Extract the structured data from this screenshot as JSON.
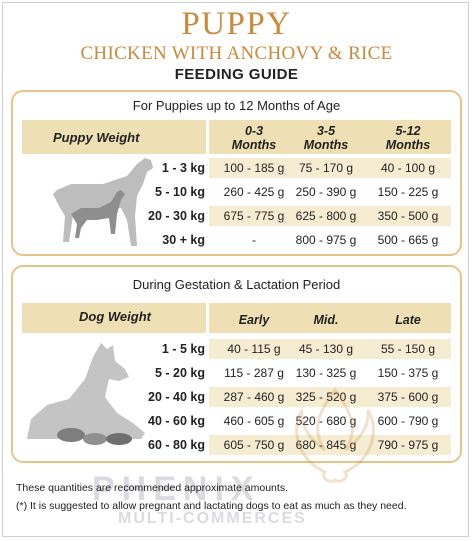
{
  "brand": {
    "title": "PUPPY",
    "subtitle": "CHICKEN WITH ANCHOVY & RICE",
    "heading": "FEEDING GUIDE"
  },
  "puppy_table": {
    "caption": "For Puppies up to 12 Months of Age",
    "row_header": "Puppy Weight",
    "columns": [
      {
        "line1": "0-3",
        "line2": "Months"
      },
      {
        "line1": "3-5",
        "line2": "Months"
      },
      {
        "line1": "5-12",
        "line2": "Months"
      }
    ],
    "rows": [
      {
        "weight": "1 - 3 kg",
        "values": [
          "100 - 185 g",
          "75 - 170 g",
          "40 - 100 g"
        ]
      },
      {
        "weight": "5 - 10 kg",
        "values": [
          "260  - 425 g",
          "250 - 390 g",
          "150 - 225 g"
        ]
      },
      {
        "weight": "20 - 30 kg",
        "values": [
          "675 - 775 g",
          "625 - 800 g",
          "350 - 500 g"
        ]
      },
      {
        "weight": "30 + kg",
        "values": [
          "-",
          "800 - 975 g",
          "500 - 665 g"
        ]
      }
    ]
  },
  "dog_table": {
    "caption": "During Gestation & Lactation Period",
    "row_header": "Dog Weight",
    "columns": [
      "Early",
      "Mid.",
      "Late"
    ],
    "rows": [
      {
        "weight": "1 - 5 kg",
        "values": [
          "40 - 115 g",
          "45 - 130 g",
          "55 - 150 g"
        ]
      },
      {
        "weight": "5 - 20 kg",
        "values": [
          "115 - 287 g",
          "130 - 325 g",
          "150 - 375 g"
        ]
      },
      {
        "weight": "20 - 40 kg",
        "values": [
          "287 - 460 g",
          "325 - 520 g",
          "375 - 600 g"
        ]
      },
      {
        "weight": "40 - 60 kg",
        "values": [
          "460 - 605 g",
          "520 - 680 g",
          "600 - 790 g"
        ]
      },
      {
        "weight": "60 - 80 kg",
        "values": [
          "605 - 750 g",
          "680 - 845 g",
          "790 - 975 g"
        ]
      }
    ]
  },
  "notes": {
    "line1": "These quantities are recommended approximate amounts.",
    "line2": "(*) It is suggested to allow pregnant and lactating dogs to eat as much as they need."
  },
  "watermark": {
    "line1": "PHENIX",
    "line2": "MULTI-COMMERCES"
  },
  "colors": {
    "accent": "#c98a3a",
    "border": "#e6c487",
    "header_bg": "#efdfb5",
    "row_bg": "#f6ecd2"
  }
}
